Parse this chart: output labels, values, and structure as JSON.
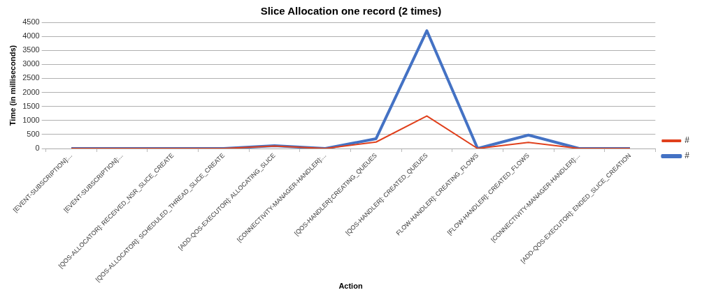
{
  "chart_data": {
    "type": "line",
    "title": "Slice Allocation one record (2 times)",
    "xlabel": "Action",
    "ylabel": "Time (in milliseconds)",
    "categories": [
      "[EVENT-SUBSCRIPTION]:...",
      "[EVENT-SUBSCRIPTION]:...",
      "[QOS-ALLOCATOR]: RECEIVED_NSR_SLICE_CREATE",
      "[QOS-ALLOCATOR]: SCHEDULED_THREAD_SLICE_CREATE",
      "[ADD-QOS-EXECUTOR]: ALLOCATING_SLICE",
      "[CONNECTIVITY-MANAGER-HANDLER]:...",
      "[QOS-HANDLER]:CREATING_QUEUES",
      "[QOS-HANDLER]: CREATED_QUEUES",
      "FLOW-HANDLER]: CREATING_FLOWS",
      "[FLOW-HANDLER]: CREATED_FLOWS",
      "[CONNECTIVITY-MANAGER-HANDLER]:...",
      "[ADD-QOS-EXECUTOR]: ENDED_SLICE_CREATION"
    ],
    "series": [
      {
        "name": "#",
        "color": "#4472c4",
        "values": [
          0,
          0,
          0,
          0,
          100,
          0,
          350,
          4200,
          0,
          480,
          0,
          0
        ]
      },
      {
        "name": "#",
        "color": "#e0401c",
        "values": [
          0,
          0,
          0,
          0,
          90,
          0,
          230,
          1160,
          0,
          220,
          0,
          0
        ]
      }
    ],
    "ylim": [
      0,
      4500
    ],
    "yticks": [
      0,
      500,
      1000,
      1500,
      2000,
      2500,
      3000,
      3500,
      4000,
      4500
    ],
    "grid": "y",
    "legend": "right",
    "marker": "none",
    "line_style": "solid"
  }
}
